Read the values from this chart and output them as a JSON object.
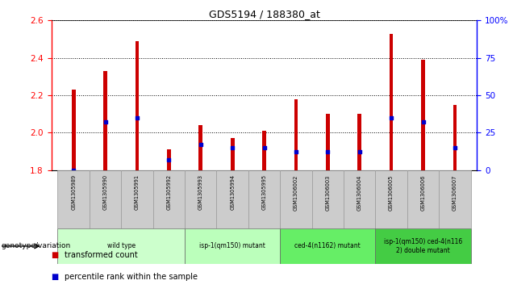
{
  "title": "GDS5194 / 188380_at",
  "samples": [
    "GSM1305989",
    "GSM1305990",
    "GSM1305991",
    "GSM1305992",
    "GSM1305993",
    "GSM1305994",
    "GSM1305995",
    "GSM1306002",
    "GSM1306003",
    "GSM1306004",
    "GSM1306005",
    "GSM1306006",
    "GSM1306007"
  ],
  "transformed_count": [
    2.23,
    2.33,
    2.49,
    1.91,
    2.04,
    1.97,
    2.01,
    2.18,
    2.1,
    2.1,
    2.53,
    2.39,
    2.15
  ],
  "percentile_rank_pct": [
    0,
    32,
    35,
    7,
    17,
    15,
    15,
    12,
    12,
    12,
    35,
    32,
    15
  ],
  "ylim_left": [
    1.8,
    2.6
  ],
  "ylim_right": [
    0,
    100
  ],
  "yticks_left": [
    1.8,
    2.0,
    2.2,
    2.4,
    2.6
  ],
  "yticks_right": [
    0,
    25,
    50,
    75,
    100
  ],
  "bar_color_red": "#cc0000",
  "bar_color_blue": "#0000cc",
  "bar_width": 0.12,
  "blue_marker_size": 5,
  "groups": [
    {
      "label": "wild type",
      "indices": [
        0,
        1,
        2,
        3
      ],
      "color": "#ccffcc"
    },
    {
      "label": "isp-1(qm150) mutant",
      "indices": [
        4,
        5,
        6
      ],
      "color": "#bbffbb"
    },
    {
      "label": "ced-4(n1162) mutant",
      "indices": [
        7,
        8,
        9
      ],
      "color": "#66ee66"
    },
    {
      "label": "isp-1(qm150) ced-4(n116\n2) double mutant",
      "indices": [
        10,
        11,
        12
      ],
      "color": "#44cc44"
    }
  ],
  "genotype_label": "genotype/variation",
  "legend_entries": [
    "transformed count",
    "percentile rank within the sample"
  ],
  "sample_box_color": "#cccccc",
  "plot_bg": "#ffffff",
  "fig_bg": "#ffffff"
}
